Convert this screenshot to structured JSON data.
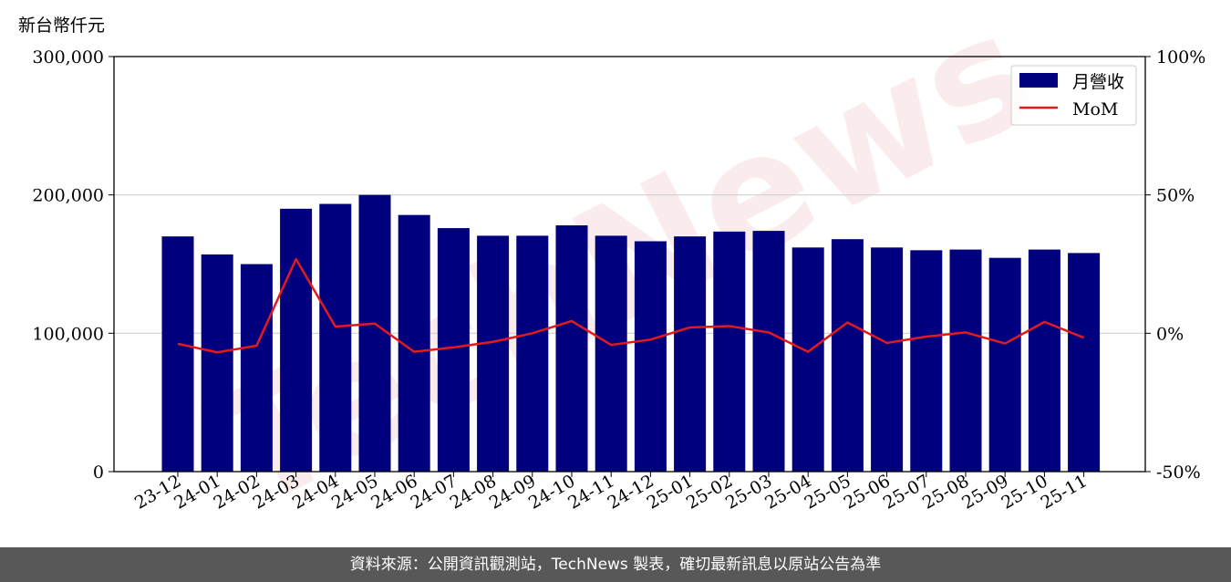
{
  "chart_data": {
    "type": "bar",
    "unit_label": "新台幣仟元",
    "categories": [
      "23-12",
      "24-01",
      "24-02",
      "24-03",
      "24-04",
      "24-05",
      "24-06",
      "24-07",
      "24-08",
      "24-09",
      "24-10",
      "24-11",
      "24-12",
      "25-01",
      "25-02",
      "25-03",
      "25-04",
      "25-05",
      "25-06",
      "25-07",
      "25-08",
      "25-09",
      "25-10",
      "25-11"
    ],
    "series": [
      {
        "name": "月營收",
        "axis": "left",
        "kind": "bar",
        "color": "#00007f",
        "values": [
          170000,
          157000,
          150000,
          190000,
          193500,
          200000,
          185500,
          176000,
          170500,
          170500,
          178000,
          170500,
          166500,
          170000,
          173500,
          174000,
          162000,
          168000,
          162000,
          160000,
          160500,
          154500,
          160500,
          158000
        ]
      },
      {
        "name": "MoM",
        "axis": "right",
        "kind": "line",
        "color": "#e31a1c",
        "values": [
          -3.8,
          -6.9,
          -4.5,
          26.8,
          2.4,
          3.5,
          -6.7,
          -5.1,
          -3.1,
          0.0,
          4.4,
          -4.2,
          -2.3,
          2.1,
          2.6,
          0.3,
          -6.7,
          3.9,
          -3.5,
          -1.2,
          0.3,
          -3.7,
          4.1,
          -1.6
        ]
      }
    ],
    "ylim": [
      0,
      300000
    ],
    "yticks": [
      "0",
      "100,000",
      "200,000",
      "300,000"
    ],
    "y2lim": [
      -50,
      100
    ],
    "y2ticks": [
      "-50%",
      "0%",
      "50%",
      "100%"
    ],
    "grid": true,
    "legend": "top-right"
  },
  "watermark": "TechNews",
  "footer": {
    "source_text": "資料來源：公開資訊觀測站，TechNews 製表，確切最新訊息以原站公告為準"
  }
}
